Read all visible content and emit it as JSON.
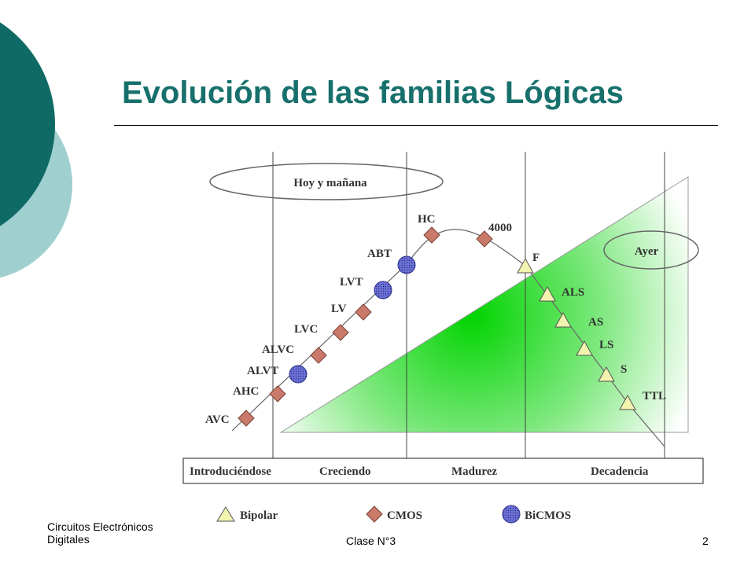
{
  "slide": {
    "title": "Evolución de las familias Lógicas",
    "accent_color": "#17706c",
    "deco_dark": "#0f6a66",
    "deco_light": "#9fcfcf"
  },
  "diagram": {
    "labels": {
      "today": "Hoy y mañana",
      "yesterday": "Ayer"
    },
    "phases": [
      "Introduciéndose",
      "Creciendo",
      "Madurez",
      "Decadencia"
    ],
    "families": [
      {
        "name": "AVC",
        "type": "cmos"
      },
      {
        "name": "AHC",
        "type": "cmos"
      },
      {
        "name": "ALVT",
        "type": "bicmos"
      },
      {
        "name": "ALVC",
        "type": "cmos"
      },
      {
        "name": "LVC",
        "type": "cmos"
      },
      {
        "name": "LV",
        "type": "cmos"
      },
      {
        "name": "LVT",
        "type": "bicmos"
      },
      {
        "name": "ABT",
        "type": "bicmos"
      },
      {
        "name": "HC",
        "type": "cmos"
      },
      {
        "name": "4000",
        "type": "cmos"
      },
      {
        "name": "F",
        "type": "bipolar"
      },
      {
        "name": "ALS",
        "type": "bipolar"
      },
      {
        "name": "AS",
        "type": "bipolar"
      },
      {
        "name": "LS",
        "type": "bipolar"
      },
      {
        "name": "S",
        "type": "bipolar"
      },
      {
        "name": "TTL",
        "type": "bipolar"
      }
    ],
    "legend": [
      {
        "label": "Bipolar",
        "type": "bipolar",
        "color": "#f3f3b0"
      },
      {
        "label": "CMOS",
        "type": "cmos",
        "color": "#c97a6a"
      },
      {
        "label": "BiCMOS",
        "type": "bicmos",
        "color": "#5a5fc8"
      }
    ],
    "gradient_color": "#00e000"
  },
  "footer": {
    "course_line1": "Circuitos Electrónicos",
    "course_line2": "Digitales",
    "class": "Clase N°3",
    "page": "2"
  }
}
